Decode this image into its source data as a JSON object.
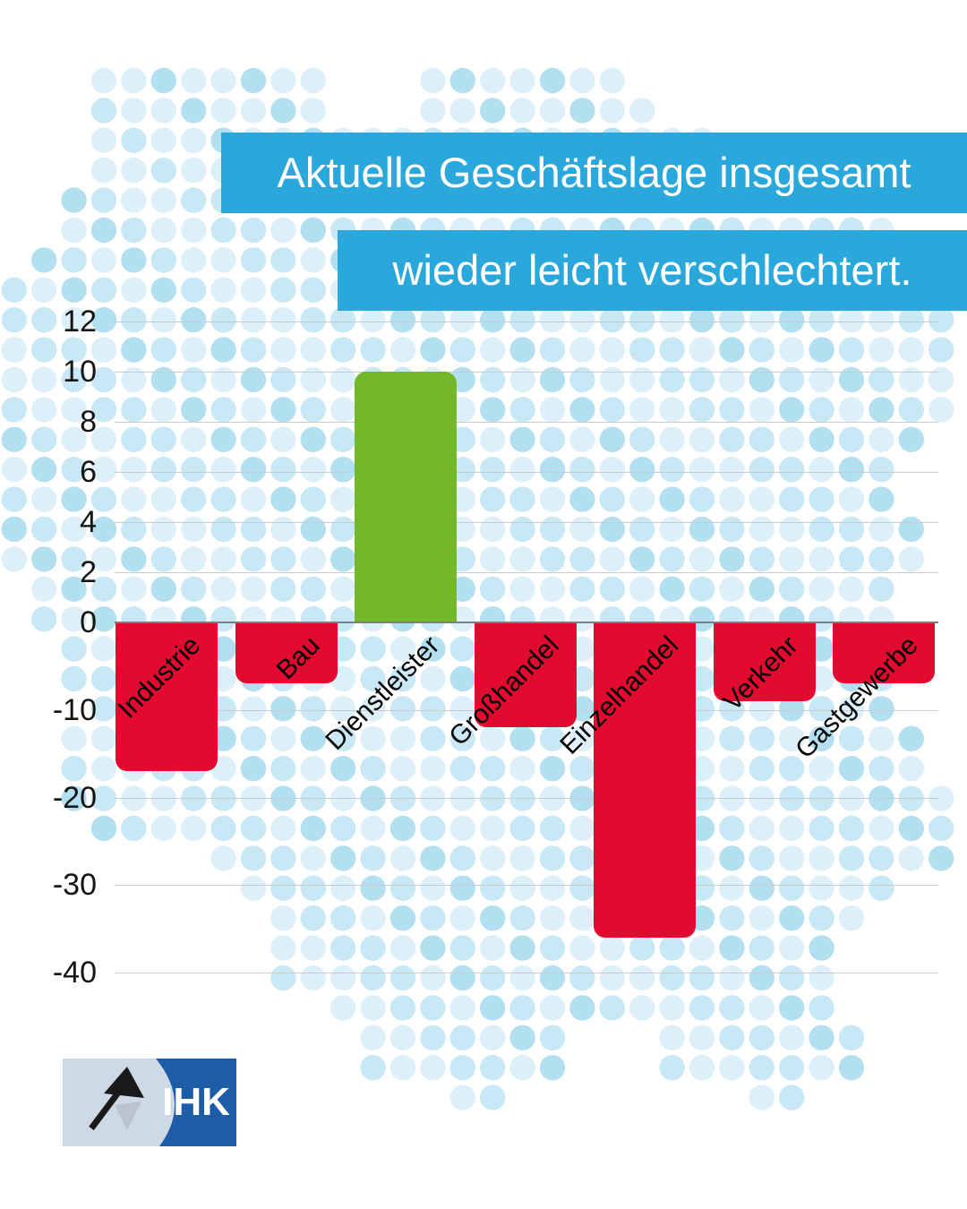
{
  "header": {
    "line1": "Aktuelle Geschäftslage insgesamt",
    "line2": "wieder leicht verschlechtert."
  },
  "chart_data": {
    "type": "bar",
    "title": "Aktuelle Geschäftslage insgesamt wieder leicht verschlechtert.",
    "categories": [
      "Industrie",
      "Bau",
      "Dienstleister",
      "Großhandel",
      "Einzelhandel",
      "Verkehr",
      "Gastgewerbe"
    ],
    "values": [
      -17,
      -7,
      10,
      -12,
      -36,
      -9,
      -7
    ],
    "yticks": [
      12,
      10,
      8,
      6,
      4,
      2,
      0,
      -10,
      -20,
      -30,
      -40
    ],
    "ylim": [
      -40,
      12
    ],
    "xlabel": "",
    "ylabel": "",
    "grid": true,
    "legend": false,
    "axis_note": "positive axis gridlines every 2 units, negative axis gridlines every 10 units (compressed negative scale)",
    "positive_color": "#73b82b",
    "negative_color": "#e30a2f"
  },
  "logo": {
    "text": "IHK"
  },
  "colors": {
    "banner_blue": "#2aa8dc",
    "bar_red": "#e30a2f",
    "bar_green": "#73b82b",
    "dot_pale": "#ddeff8",
    "dot_mid": "#c7e8f4",
    "dot_dark": "#b3e0f0",
    "gridline": "#cbcbcb",
    "zero_line": "#7d7d7d",
    "tick_text": "#141414",
    "logo_dark_blue": "#1d5ca6",
    "logo_light_panel": "#cdd9e5",
    "logo_flag_black": "#1a1a1a",
    "logo_flag_gray": "#b9c4d0"
  }
}
